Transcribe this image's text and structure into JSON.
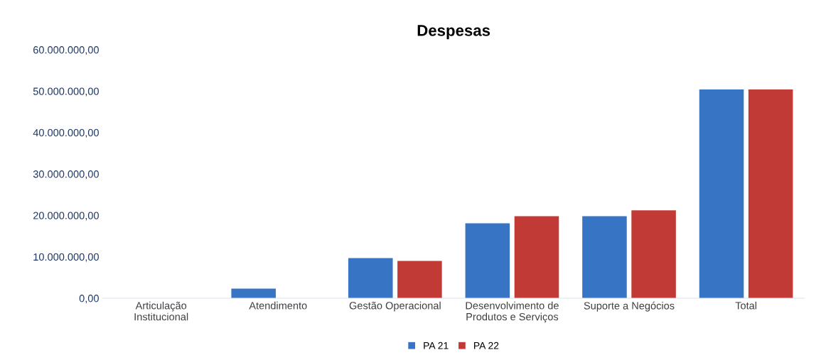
{
  "chart_data": {
    "type": "bar",
    "title": "Despesas",
    "categories": [
      "Articulação\nInstitucional",
      "Atendimento",
      "Gestão Operacional",
      "Desenvolvimento de\nProdutos e Serviços",
      "Suporte a Negócios",
      "Total"
    ],
    "series": [
      {
        "name": "PA 21",
        "color": "#3874c4",
        "values": [
          0,
          2300000,
          9700000,
          18100000,
          19800000,
          50400000
        ]
      },
      {
        "name": "PA 22",
        "color": "#c23a36",
        "values": [
          0,
          0,
          9000000,
          19800000,
          21200000,
          50400000
        ]
      }
    ],
    "ylim": [
      0,
      60000000
    ],
    "yticks": [
      {
        "value": 0,
        "label": "0,00"
      },
      {
        "value": 10000000,
        "label": "10.000.000,00"
      },
      {
        "value": 20000000,
        "label": "20.000.000,00"
      },
      {
        "value": 30000000,
        "label": "30.000.000,00"
      },
      {
        "value": 40000000,
        "label": "40.000.000,00"
      },
      {
        "value": 50000000,
        "label": "50.000.000,00"
      },
      {
        "value": 60000000,
        "label": "60.000.000,00"
      }
    ],
    "grid": false,
    "legend": "bottom"
  }
}
